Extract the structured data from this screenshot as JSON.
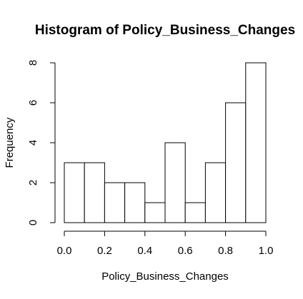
{
  "chart_data": {
    "type": "bar",
    "title": "Histogram of Policy_Business_Changes",
    "xlabel": "Policy_Business_Changes",
    "ylabel": "Frequency",
    "bins": [
      {
        "from": 0.0,
        "to": 0.1,
        "count": 3
      },
      {
        "from": 0.1,
        "to": 0.2,
        "count": 3
      },
      {
        "from": 0.2,
        "to": 0.3,
        "count": 2
      },
      {
        "from": 0.3,
        "to": 0.4,
        "count": 2
      },
      {
        "from": 0.4,
        "to": 0.5,
        "count": 1
      },
      {
        "from": 0.5,
        "to": 0.6,
        "count": 4
      },
      {
        "from": 0.6,
        "to": 0.7,
        "count": 1
      },
      {
        "from": 0.7,
        "to": 0.8,
        "count": 3
      },
      {
        "from": 0.8,
        "to": 0.9,
        "count": 6
      },
      {
        "from": 0.9,
        "to": 1.0,
        "count": 8
      }
    ],
    "xlim": [
      0.0,
      1.0
    ],
    "ylim": [
      0,
      8
    ],
    "x_ticks": [
      0.0,
      0.2,
      0.4,
      0.6,
      0.8,
      1.0
    ],
    "x_tick_labels": [
      "0.0",
      "0.2",
      "0.4",
      "0.6",
      "0.8",
      "1.0"
    ],
    "y_ticks": [
      0,
      2,
      4,
      6,
      8
    ],
    "y_tick_labels": [
      "0",
      "2",
      "4",
      "6",
      "8"
    ],
    "grid": false,
    "colors": {
      "bar_fill": "#ffffff",
      "bar_stroke": "#000000",
      "background": "#ffffff"
    }
  }
}
